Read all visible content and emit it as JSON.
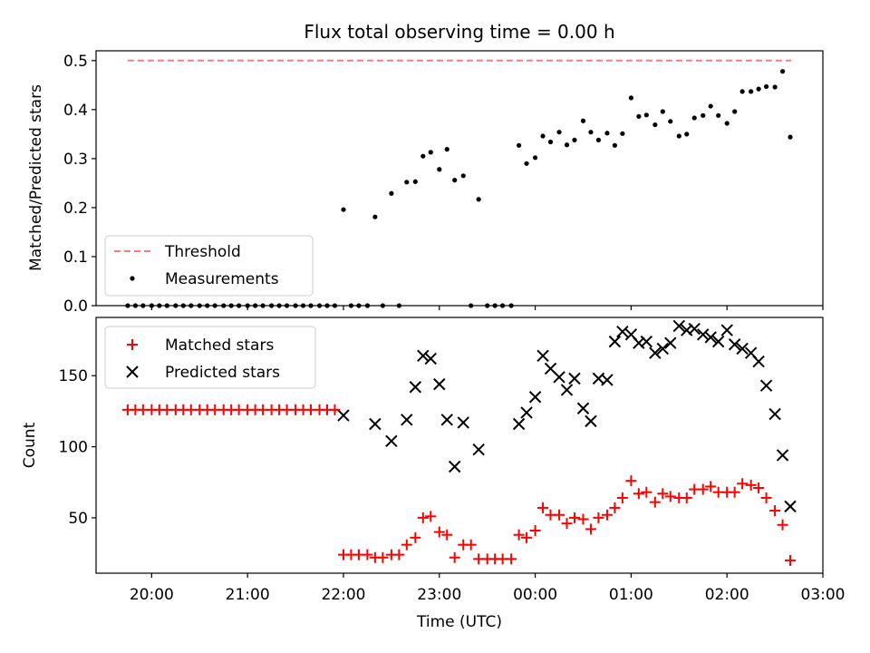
{
  "figure": {
    "title": "Flux total observing time = 0.00 h"
  },
  "chart_data": [
    {
      "type": "scatter",
      "ylabel": "Matched/Predicted stars",
      "ylim": [
        0,
        0.52
      ],
      "yticks": [
        "0.0",
        "0.1",
        "0.2",
        "0.3",
        "0.4",
        "0.5"
      ],
      "grid": false,
      "legend": {
        "placement": "lower-left",
        "entries": [
          "Threshold",
          "Measurements"
        ]
      },
      "threshold": {
        "name": "Threshold",
        "value": 0.5,
        "x_start": -4.25,
        "x_end": 2.67,
        "color": "#f08080",
        "style": "dashed"
      },
      "series": [
        {
          "name": "Measurements",
          "marker": "dot",
          "color": "#000000",
          "points": [
            [
              -4.25,
              0
            ],
            [
              -4.17,
              0
            ],
            [
              -4.09,
              0
            ],
            [
              -4.0,
              0
            ],
            [
              -3.92,
              0
            ],
            [
              -3.84,
              0
            ],
            [
              -3.75,
              0
            ],
            [
              -3.67,
              0
            ],
            [
              -3.59,
              0
            ],
            [
              -3.5,
              0
            ],
            [
              -3.42,
              0
            ],
            [
              -3.34,
              0
            ],
            [
              -3.25,
              0
            ],
            [
              -3.17,
              0
            ],
            [
              -3.09,
              0
            ],
            [
              -3.0,
              0
            ],
            [
              -2.92,
              0
            ],
            [
              -2.84,
              0
            ],
            [
              -2.75,
              0
            ],
            [
              -2.67,
              0
            ],
            [
              -2.59,
              0
            ],
            [
              -2.5,
              0
            ],
            [
              -2.42,
              0
            ],
            [
              -2.34,
              0
            ],
            [
              -2.25,
              0
            ],
            [
              -2.17,
              0
            ],
            [
              -2.09,
              0
            ],
            [
              -2.0,
              0.196
            ],
            [
              -1.92,
              0
            ],
            [
              -1.84,
              0
            ],
            [
              -1.75,
              0
            ],
            [
              -1.67,
              0.181
            ],
            [
              -1.59,
              0
            ],
            [
              -1.5,
              0.229
            ],
            [
              -1.42,
              0
            ],
            [
              -1.34,
              0.252
            ],
            [
              -1.25,
              0.253
            ],
            [
              -1.17,
              0.305
            ],
            [
              -1.09,
              0.313
            ],
            [
              -1.0,
              0.278
            ],
            [
              -0.92,
              0.319
            ],
            [
              -0.84,
              0.256
            ],
            [
              -0.75,
              0.265
            ],
            [
              -0.67,
              0
            ],
            [
              -0.59,
              0.217
            ],
            [
              -0.5,
              0
            ],
            [
              -0.42,
              0
            ],
            [
              -0.34,
              0
            ],
            [
              -0.25,
              0
            ],
            [
              -0.17,
              0.327
            ],
            [
              -0.09,
              0.29
            ],
            [
              0.0,
              0.302
            ],
            [
              0.08,
              0.346
            ],
            [
              0.16,
              0.334
            ],
            [
              0.25,
              0.354
            ],
            [
              0.33,
              0.328
            ],
            [
              0.41,
              0.338
            ],
            [
              0.5,
              0.377
            ],
            [
              0.58,
              0.354
            ],
            [
              0.66,
              0.338
            ],
            [
              0.75,
              0.352
            ],
            [
              0.83,
              0.327
            ],
            [
              0.91,
              0.351
            ],
            [
              1.0,
              0.424
            ],
            [
              1.08,
              0.386
            ],
            [
              1.16,
              0.389
            ],
            [
              1.25,
              0.369
            ],
            [
              1.33,
              0.396
            ],
            [
              1.41,
              0.376
            ],
            [
              1.5,
              0.346
            ],
            [
              1.58,
              0.35
            ],
            [
              1.66,
              0.383
            ],
            [
              1.75,
              0.388
            ],
            [
              1.83,
              0.407
            ],
            [
              1.91,
              0.388
            ],
            [
              2.0,
              0.372
            ],
            [
              2.08,
              0.396
            ],
            [
              2.16,
              0.437
            ],
            [
              2.25,
              0.437
            ],
            [
              2.33,
              0.442
            ],
            [
              2.41,
              0.447
            ],
            [
              2.5,
              0.446
            ],
            [
              2.58,
              0.478
            ],
            [
              2.66,
              0.344
            ]
          ]
        }
      ]
    },
    {
      "type": "scatter",
      "xlabel": "Time (UTC)",
      "ylabel": "Count",
      "xlim": [
        -4.58,
        3.0
      ],
      "xticks": [
        {
          "value": -4,
          "label": "20:00"
        },
        {
          "value": -3,
          "label": "21:00"
        },
        {
          "value": -2,
          "label": "22:00"
        },
        {
          "value": -1,
          "label": "23:00"
        },
        {
          "value": 0,
          "label": "00:00"
        },
        {
          "value": 1,
          "label": "01:00"
        },
        {
          "value": 2,
          "label": "02:00"
        },
        {
          "value": 3,
          "label": "03:00"
        }
      ],
      "ylim": [
        11,
        191
      ],
      "yticks": [
        "50",
        "100",
        "150"
      ],
      "grid": false,
      "legend": {
        "placement": "top-left",
        "entries": [
          "Matched stars",
          "Predicted stars"
        ]
      },
      "series": [
        {
          "name": "Matched stars",
          "marker": "plus",
          "color": "#ff0000",
          "points": [
            [
              -4.25,
              126
            ],
            [
              -4.17,
              126
            ],
            [
              -4.09,
              126
            ],
            [
              -4.0,
              126
            ],
            [
              -3.92,
              126
            ],
            [
              -3.84,
              126
            ],
            [
              -3.75,
              126
            ],
            [
              -3.67,
              126
            ],
            [
              -3.59,
              126
            ],
            [
              -3.5,
              126
            ],
            [
              -3.42,
              126
            ],
            [
              -3.34,
              126
            ],
            [
              -3.25,
              126
            ],
            [
              -3.17,
              126
            ],
            [
              -3.09,
              126
            ],
            [
              -3.0,
              126
            ],
            [
              -2.92,
              126
            ],
            [
              -2.84,
              126
            ],
            [
              -2.75,
              126
            ],
            [
              -2.67,
              126
            ],
            [
              -2.59,
              126
            ],
            [
              -2.5,
              126
            ],
            [
              -2.42,
              126
            ],
            [
              -2.34,
              126
            ],
            [
              -2.25,
              126
            ],
            [
              -2.17,
              126
            ],
            [
              -2.09,
              126
            ],
            [
              -2.0,
              24
            ],
            [
              -1.92,
              24
            ],
            [
              -1.84,
              24
            ],
            [
              -1.75,
              24
            ],
            [
              -1.67,
              22
            ],
            [
              -1.59,
              22
            ],
            [
              -1.5,
              24
            ],
            [
              -1.42,
              24
            ],
            [
              -1.34,
              31
            ],
            [
              -1.25,
              36
            ],
            [
              -1.17,
              50
            ],
            [
              -1.09,
              51
            ],
            [
              -1.0,
              40
            ],
            [
              -0.92,
              38
            ],
            [
              -0.84,
              22
            ],
            [
              -0.75,
              31
            ],
            [
              -0.67,
              31
            ],
            [
              -0.59,
              21
            ],
            [
              -0.5,
              21
            ],
            [
              -0.42,
              21
            ],
            [
              -0.34,
              21
            ],
            [
              -0.25,
              21
            ],
            [
              -0.17,
              38
            ],
            [
              -0.09,
              36
            ],
            [
              0.0,
              41
            ],
            [
              0.08,
              57
            ],
            [
              0.16,
              52
            ],
            [
              0.25,
              52
            ],
            [
              0.33,
              46
            ],
            [
              0.41,
              50
            ],
            [
              0.5,
              49
            ],
            [
              0.58,
              42
            ],
            [
              0.66,
              50
            ],
            [
              0.75,
              52
            ],
            [
              0.83,
              57
            ],
            [
              0.91,
              64
            ],
            [
              1.0,
              76
            ],
            [
              1.08,
              67
            ],
            [
              1.16,
              68
            ],
            [
              1.25,
              61
            ],
            [
              1.33,
              67
            ],
            [
              1.41,
              65
            ],
            [
              1.5,
              64
            ],
            [
              1.58,
              64
            ],
            [
              1.66,
              70
            ],
            [
              1.75,
              70
            ],
            [
              1.83,
              72
            ],
            [
              1.91,
              68
            ],
            [
              2.0,
              68
            ],
            [
              2.08,
              68
            ],
            [
              2.16,
              74
            ],
            [
              2.25,
              73
            ],
            [
              2.33,
              71
            ],
            [
              2.41,
              64
            ],
            [
              2.5,
              55
            ],
            [
              2.58,
              45
            ],
            [
              2.66,
              20
            ]
          ]
        },
        {
          "name": "Predicted stars",
          "marker": "x",
          "color": "#000000",
          "points": [
            [
              -2.0,
              122
            ],
            [
              -1.67,
              116
            ],
            [
              -1.5,
              104
            ],
            [
              -1.34,
              119
            ],
            [
              -1.25,
              142
            ],
            [
              -1.17,
              164
            ],
            [
              -1.09,
              162
            ],
            [
              -1.0,
              144
            ],
            [
              -0.92,
              119
            ],
            [
              -0.84,
              86
            ],
            [
              -0.75,
              117
            ],
            [
              -0.59,
              98
            ],
            [
              -0.17,
              116
            ],
            [
              -0.09,
              124
            ],
            [
              0.0,
              135
            ],
            [
              0.08,
              164
            ],
            [
              0.16,
              155
            ],
            [
              0.25,
              149
            ],
            [
              0.33,
              140
            ],
            [
              0.41,
              148
            ],
            [
              0.5,
              127
            ],
            [
              0.58,
              118
            ],
            [
              0.66,
              148
            ],
            [
              0.75,
              147
            ],
            [
              0.83,
              174
            ],
            [
              0.91,
              181
            ],
            [
              1.0,
              179
            ],
            [
              1.08,
              173
            ],
            [
              1.16,
              174
            ],
            [
              1.25,
              166
            ],
            [
              1.33,
              169
            ],
            [
              1.41,
              173
            ],
            [
              1.5,
              185
            ],
            [
              1.58,
              182
            ],
            [
              1.66,
              183
            ],
            [
              1.75,
              179
            ],
            [
              1.83,
              177
            ],
            [
              1.91,
              174
            ],
            [
              2.0,
              182
            ],
            [
              2.08,
              172
            ],
            [
              2.16,
              169
            ],
            [
              2.25,
              166
            ],
            [
              2.33,
              160
            ],
            [
              2.41,
              143
            ],
            [
              2.5,
              123
            ],
            [
              2.58,
              94
            ],
            [
              2.66,
              58
            ]
          ]
        }
      ]
    }
  ]
}
